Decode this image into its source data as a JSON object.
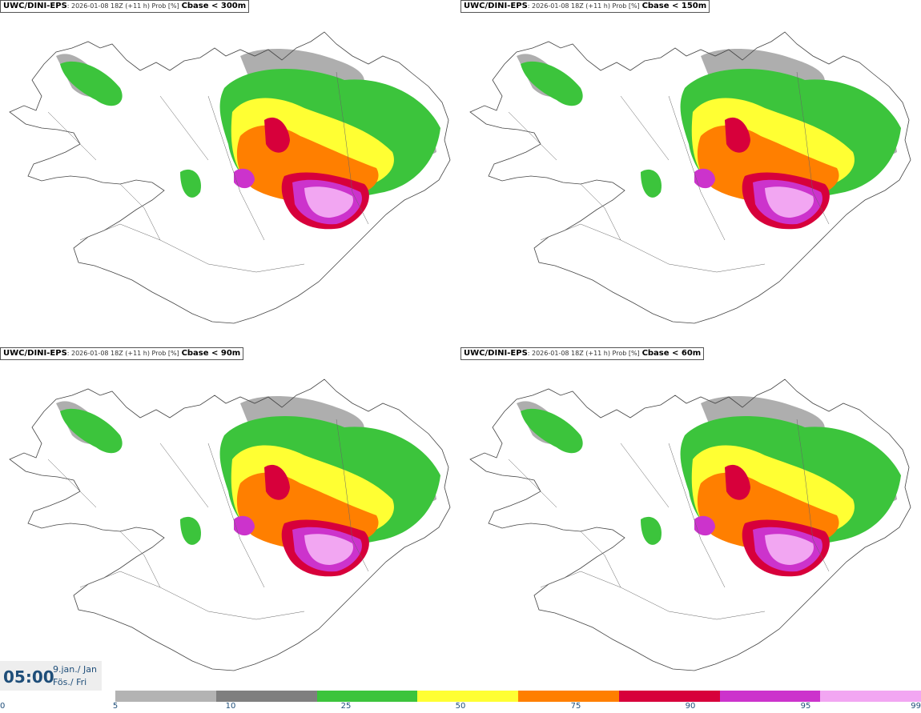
{
  "panels": [
    {
      "model": "UWC/DINI-EPS",
      "info": ": 2026-01-08 18Z (+11 h) Prob [%]",
      "param": "Cbase < 300m"
    },
    {
      "model": "UWC/DINI-EPS",
      "info": ": 2026-01-08 18Z (+11 h) Prob [%]",
      "param": "Cbase < 150m"
    },
    {
      "model": "UWC/DINI-EPS",
      "info": ": 2026-01-08 18Z (+11 h) Prob [%]",
      "param": "Cbase < 90m"
    },
    {
      "model": "UWC/DINI-EPS",
      "info": ": 2026-01-08 18Z (+11 h) Prob [%]",
      "param": "Cbase < 60m"
    }
  ],
  "valid_time": {
    "time": "05:00",
    "date_line1": "9.jan./ Jan",
    "date_line2": "Fös./ Fri"
  },
  "colorbar": {
    "ticks": [
      "0",
      "5",
      "10",
      "25",
      "50",
      "75",
      "90",
      "95",
      "99"
    ],
    "colors": [
      "#b3b3b3",
      "#7f7f7f",
      "#3cc43c",
      "#ffff33",
      "#ff7f00",
      "#d7003b",
      "#cc33cc",
      "#f2a6f2"
    ]
  }
}
